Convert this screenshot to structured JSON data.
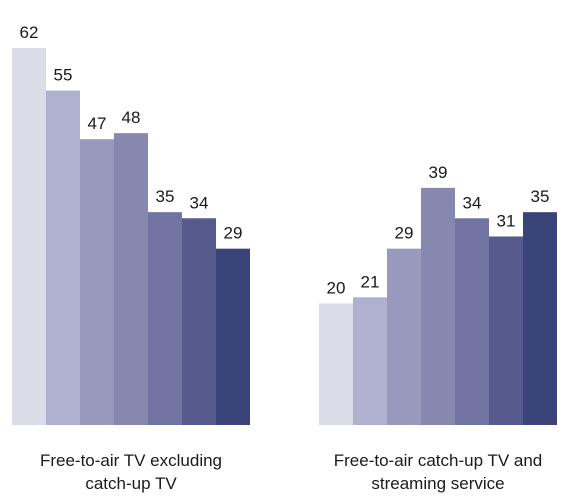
{
  "chart_data": {
    "type": "bar",
    "categories": [
      "Free-to-air TV excluding catch-up TV",
      "Free-to-air catch-up TV and streaming service"
    ],
    "category_label_lines": [
      [
        "Free-to-air TV excluding",
        "catch-up TV"
      ],
      [
        "Free-to-air catch-up TV and",
        "streaming service"
      ]
    ],
    "series": [
      {
        "values": [
          62,
          20
        ],
        "color": "#dcdce8"
      },
      {
        "values": [
          55,
          21
        ],
        "color": "#b0b1d0"
      },
      {
        "values": [
          47,
          29
        ],
        "color": "#9899bd"
      },
      {
        "values": [
          48,
          39
        ],
        "color": "#8788b0"
      },
      {
        "values": [
          35,
          34
        ],
        "color": "#7173a3"
      },
      {
        "values": [
          34,
          31
        ],
        "color": "#565a8c"
      },
      {
        "values": [
          29,
          35
        ],
        "color": "#3a4479"
      }
    ],
    "ylim": [
      0,
      62
    ],
    "grid": false,
    "legend": "none"
  }
}
